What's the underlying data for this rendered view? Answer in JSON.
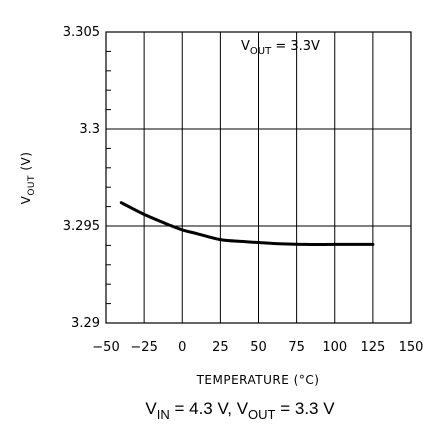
{
  "chart_data": {
    "type": "line",
    "xlabel": "TEMPERATURE (°C)",
    "ylabel_main": "V",
    "ylabel_sub": "OUT",
    "ylabel_unit": " (V)",
    "xlim": [
      -50,
      150
    ],
    "ylim": [
      3.29,
      3.305
    ],
    "x_ticks": [
      -50,
      -25,
      0,
      25,
      50,
      75,
      100,
      125,
      150
    ],
    "x_tick_labels": [
      "−50",
      "−25",
      "0",
      "25",
      "50",
      "75",
      "100",
      "125",
      "150"
    ],
    "y_ticks": [
      3.29,
      3.295,
      3.3,
      3.305
    ],
    "y_tick_labels": [
      "3.29",
      "3.295",
      "3.3",
      "3.305"
    ],
    "grid": true,
    "annotation": {
      "main": "V",
      "sub": "OUT",
      "rest": " = 3.3V"
    },
    "series": [
      {
        "x": [
          -40,
          -25,
          -10,
          0,
          10,
          25,
          40,
          60,
          80,
          100,
          125
        ],
        "y": [
          3.2962,
          3.2956,
          3.2951,
          3.2948,
          3.2946,
          3.2943,
          3.2942,
          3.2941,
          3.29405,
          3.29405,
          3.29405
        ]
      }
    ]
  },
  "caption": {
    "p1": "V",
    "s1": "IN",
    "p2": " = 4.3 V, V",
    "s2": "OUT",
    "p3": " = 3.3 V"
  }
}
